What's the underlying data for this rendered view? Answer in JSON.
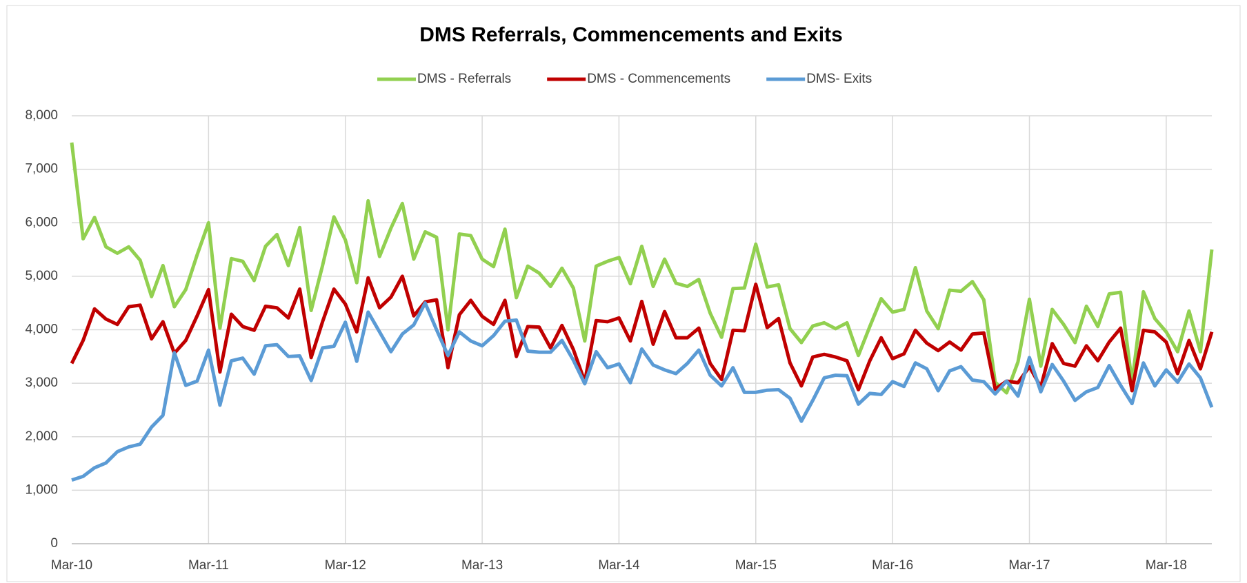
{
  "chart_data": {
    "type": "line",
    "title": "DMS Referrals, Commencements and Exits",
    "categories": [
      "Mar-10",
      null,
      null,
      null,
      null,
      null,
      null,
      null,
      null,
      null,
      null,
      null,
      "Mar-11",
      null,
      null,
      null,
      null,
      null,
      null,
      null,
      null,
      null,
      null,
      null,
      "Mar-12",
      null,
      null,
      null,
      null,
      null,
      null,
      null,
      null,
      null,
      null,
      null,
      "Mar-13",
      null,
      null,
      null,
      null,
      null,
      null,
      null,
      null,
      null,
      null,
      null,
      "Mar-14",
      null,
      null,
      null,
      null,
      null,
      null,
      null,
      null,
      null,
      null,
      null,
      "Mar-15",
      null,
      null,
      null,
      null,
      null,
      null,
      null,
      null,
      null,
      null,
      null,
      "Mar-16",
      null,
      null,
      null,
      null,
      null,
      null,
      null,
      null,
      null,
      null,
      null,
      "Mar-17",
      null,
      null,
      null,
      null,
      null,
      null,
      null,
      null,
      null,
      null,
      null,
      "Mar-18",
      null,
      null,
      null,
      null
    ],
    "series": [
      {
        "name": "DMS - Referrals",
        "color": "#92d050",
        "values": [
          7500,
          5700,
          6100,
          5550,
          5430,
          5550,
          5300,
          4620,
          5200,
          4430,
          4750,
          5400,
          6000,
          4030,
          5330,
          5280,
          4920,
          5560,
          5780,
          5200,
          5910,
          4360,
          5200,
          6110,
          5680,
          4880,
          6410,
          5370,
          5900,
          6360,
          5320,
          5830,
          5730,
          4000,
          5790,
          5760,
          5320,
          5180,
          5880,
          4600,
          5190,
          5060,
          4810,
          5150,
          4780,
          3790,
          5190,
          5280,
          5350,
          4860,
          5560,
          4810,
          5320,
          4870,
          4810,
          4940,
          4310,
          3860,
          4770,
          4780,
          5600,
          4800,
          4840,
          4020,
          3760,
          4070,
          4130,
          4020,
          4130,
          3520,
          4060,
          4580,
          4330,
          4380,
          5160,
          4350,
          4020,
          4740,
          4720,
          4900,
          4560,
          3020,
          2820,
          3400,
          4570,
          3320,
          4380,
          4100,
          3760,
          4440,
          4060,
          4670,
          4700,
          3010,
          4710,
          4210,
          3960,
          3590,
          4350,
          3590,
          5500
        ]
      },
      {
        "name": "DMS - Commencements",
        "color": "#c00000",
        "values": [
          3370,
          3800,
          4390,
          4200,
          4100,
          4430,
          4460,
          3830,
          4150,
          3560,
          3800,
          4260,
          4750,
          3210,
          4290,
          4060,
          3990,
          4440,
          4410,
          4220,
          4760,
          3480,
          4150,
          4760,
          4480,
          3960,
          4970,
          4410,
          4610,
          5000,
          4260,
          4520,
          4560,
          3290,
          4280,
          4550,
          4250,
          4100,
          4550,
          3500,
          4060,
          4050,
          3660,
          4080,
          3630,
          3030,
          4170,
          4150,
          4220,
          3790,
          4530,
          3730,
          4340,
          3850,
          3850,
          4030,
          3370,
          3070,
          3990,
          3980,
          4850,
          4040,
          4210,
          3380,
          2950,
          3490,
          3540,
          3490,
          3420,
          2880,
          3420,
          3850,
          3460,
          3550,
          3990,
          3750,
          3610,
          3770,
          3620,
          3920,
          3940,
          2890,
          3040,
          3010,
          3310,
          2930,
          3740,
          3370,
          3320,
          3700,
          3420,
          3770,
          4030,
          2860,
          3990,
          3960,
          3770,
          3180,
          3800,
          3270,
          3960
        ]
      },
      {
        "name": "DMS- Exits",
        "color": "#5b9bd5",
        "values": [
          1190,
          1260,
          1420,
          1510,
          1720,
          1810,
          1860,
          2180,
          2400,
          3570,
          2960,
          3040,
          3620,
          2590,
          3420,
          3470,
          3170,
          3700,
          3720,
          3500,
          3510,
          3050,
          3660,
          3690,
          4140,
          3410,
          4330,
          3960,
          3590,
          3920,
          4090,
          4500,
          4000,
          3520,
          3960,
          3790,
          3700,
          3890,
          4160,
          4180,
          3600,
          3580,
          3580,
          3800,
          3430,
          2990,
          3590,
          3290,
          3360,
          3010,
          3640,
          3340,
          3250,
          3180,
          3370,
          3620,
          3150,
          2950,
          3290,
          2830,
          2830,
          2870,
          2880,
          2720,
          2290,
          2680,
          3100,
          3150,
          3140,
          2610,
          2810,
          2790,
          3030,
          2940,
          3380,
          3270,
          2860,
          3230,
          3310,
          3060,
          3030,
          2800,
          3040,
          2760,
          3480,
          2840,
          3350,
          3040,
          2680,
          2840,
          2920,
          3330,
          2960,
          2620,
          3380,
          2950,
          3250,
          3020,
          3360,
          3100,
          2550
        ]
      }
    ],
    "ylim": [
      0,
      8000
    ],
    "yticks": [
      0,
      {
        "value": 1000,
        "label": "1,000"
      },
      {
        "value": 2000,
        "label": "2,000"
      },
      {
        "value": 3000,
        "label": "3,000"
      },
      {
        "value": 4000,
        "label": "4,000"
      },
      {
        "value": 5000,
        "label": "5,000"
      },
      {
        "value": 6000,
        "label": "6,000"
      },
      {
        "value": 7000,
        "label": "7,000"
      },
      {
        "value": 8000,
        "label": "8,000"
      }
    ],
    "grid": true,
    "legend": "top"
  }
}
